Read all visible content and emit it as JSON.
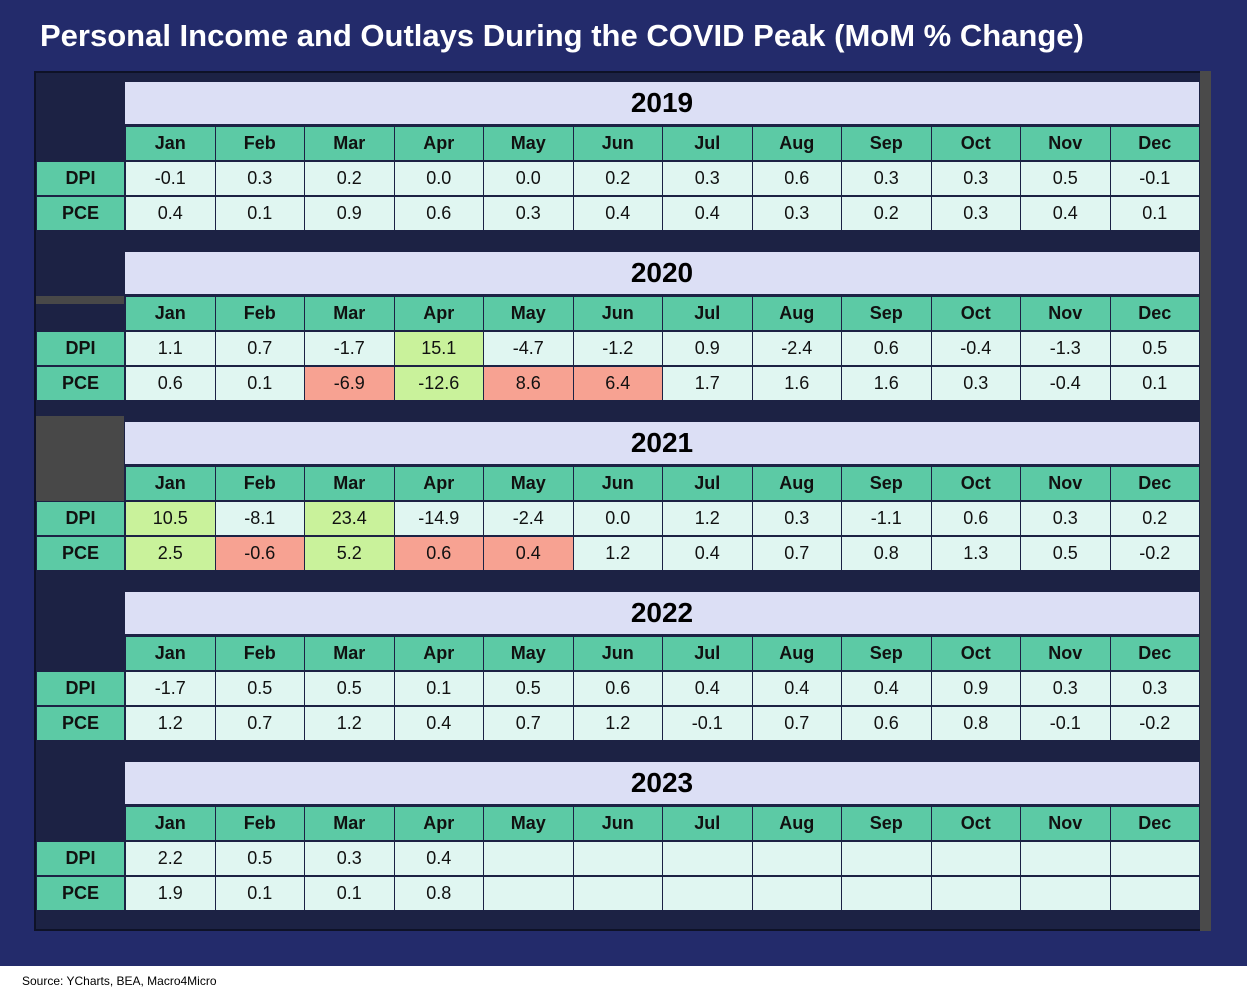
{
  "title": "Personal Income and Outlays During the COVID Peak (MoM % Change)",
  "source": "Source: YCharts, BEA, Macro4Micro",
  "colors": {
    "background": "#232b6b",
    "header_green": "#5ccaa5",
    "cell_mint": "#e0f6f1",
    "year_band": "#dcdff5",
    "highlight_green": "#c9f29b",
    "highlight_red": "#f7a292"
  },
  "chart_data": {
    "type": "table",
    "columns": [
      "Jan",
      "Feb",
      "Mar",
      "Apr",
      "May",
      "Jun",
      "Jul",
      "Aug",
      "Sep",
      "Oct",
      "Nov",
      "Dec"
    ],
    "row_labels": [
      "DPI",
      "PCE"
    ],
    "years": [
      {
        "year": "2019",
        "rows": [
          {
            "label": "DPI",
            "values": [
              "-0.1",
              "0.3",
              "0.2",
              "0.0",
              "0.0",
              "0.2",
              "0.3",
              "0.6",
              "0.3",
              "0.3",
              "0.5",
              "-0.1"
            ],
            "highlight": [
              "",
              "",
              "",
              "",
              "",
              "",
              "",
              "",
              "",
              "",
              "",
              ""
            ]
          },
          {
            "label": "PCE",
            "values": [
              "0.4",
              "0.1",
              "0.9",
              "0.6",
              "0.3",
              "0.4",
              "0.4",
              "0.3",
              "0.2",
              "0.3",
              "0.4",
              "0.1"
            ],
            "highlight": [
              "",
              "",
              "",
              "",
              "",
              "",
              "",
              "",
              "",
              "",
              "",
              ""
            ]
          }
        ]
      },
      {
        "year": "2020",
        "rows": [
          {
            "label": "DPI",
            "values": [
              "1.1",
              "0.7",
              "-1.7",
              "15.1",
              "-4.7",
              "-1.2",
              "0.9",
              "-2.4",
              "0.6",
              "-0.4",
              "-1.3",
              "0.5"
            ],
            "highlight": [
              "",
              "",
              "",
              "green",
              "",
              "",
              "",
              "",
              "",
              "",
              "",
              ""
            ]
          },
          {
            "label": "PCE",
            "values": [
              "0.6",
              "0.1",
              "-6.9",
              "-12.6",
              "8.6",
              "6.4",
              "1.7",
              "1.6",
              "1.6",
              "0.3",
              "-0.4",
              "0.1"
            ],
            "highlight": [
              "",
              "",
              "red",
              "green",
              "red",
              "red",
              "",
              "",
              "",
              "",
              "",
              ""
            ]
          }
        ]
      },
      {
        "year": "2021",
        "rows": [
          {
            "label": "DPI",
            "values": [
              "10.5",
              "-8.1",
              "23.4",
              "-14.9",
              "-2.4",
              "0.0",
              "1.2",
              "0.3",
              "-1.1",
              "0.6",
              "0.3",
              "0.2"
            ],
            "highlight": [
              "green",
              "",
              "green",
              "",
              "",
              "",
              "",
              "",
              "",
              "",
              "",
              ""
            ]
          },
          {
            "label": "PCE",
            "values": [
              "2.5",
              "-0.6",
              "5.2",
              "0.6",
              "0.4",
              "1.2",
              "0.4",
              "0.7",
              "0.8",
              "1.3",
              "0.5",
              "-0.2"
            ],
            "highlight": [
              "green",
              "red",
              "green",
              "red",
              "red",
              "",
              "",
              "",
              "",
              "",
              "",
              ""
            ]
          }
        ]
      },
      {
        "year": "2022",
        "rows": [
          {
            "label": "DPI",
            "values": [
              "-1.7",
              "0.5",
              "0.5",
              "0.1",
              "0.5",
              "0.6",
              "0.4",
              "0.4",
              "0.4",
              "0.9",
              "0.3",
              "0.3"
            ],
            "highlight": [
              "",
              "",
              "",
              "",
              "",
              "",
              "",
              "",
              "",
              "",
              "",
              ""
            ]
          },
          {
            "label": "PCE",
            "values": [
              "1.2",
              "0.7",
              "1.2",
              "0.4",
              "0.7",
              "1.2",
              "-0.1",
              "0.7",
              "0.6",
              "0.8",
              "-0.1",
              "-0.2"
            ],
            "highlight": [
              "",
              "",
              "",
              "",
              "",
              "",
              "",
              "",
              "",
              "",
              "",
              ""
            ]
          }
        ]
      },
      {
        "year": "2023",
        "rows": [
          {
            "label": "DPI",
            "values": [
              "2.2",
              "0.5",
              "0.3",
              "0.4",
              "",
              "",
              "",
              "",
              "",
              "",
              "",
              ""
            ],
            "highlight": [
              "",
              "",
              "",
              "",
              "",
              "",
              "",
              "",
              "",
              "",
              "",
              ""
            ]
          },
          {
            "label": "PCE",
            "values": [
              "1.9",
              "0.1",
              "0.1",
              "0.8",
              "",
              "",
              "",
              "",
              "",
              "",
              "",
              ""
            ],
            "highlight": [
              "",
              "",
              "",
              "",
              "",
              "",
              "",
              "",
              "",
              "",
              "",
              ""
            ]
          }
        ]
      }
    ]
  }
}
